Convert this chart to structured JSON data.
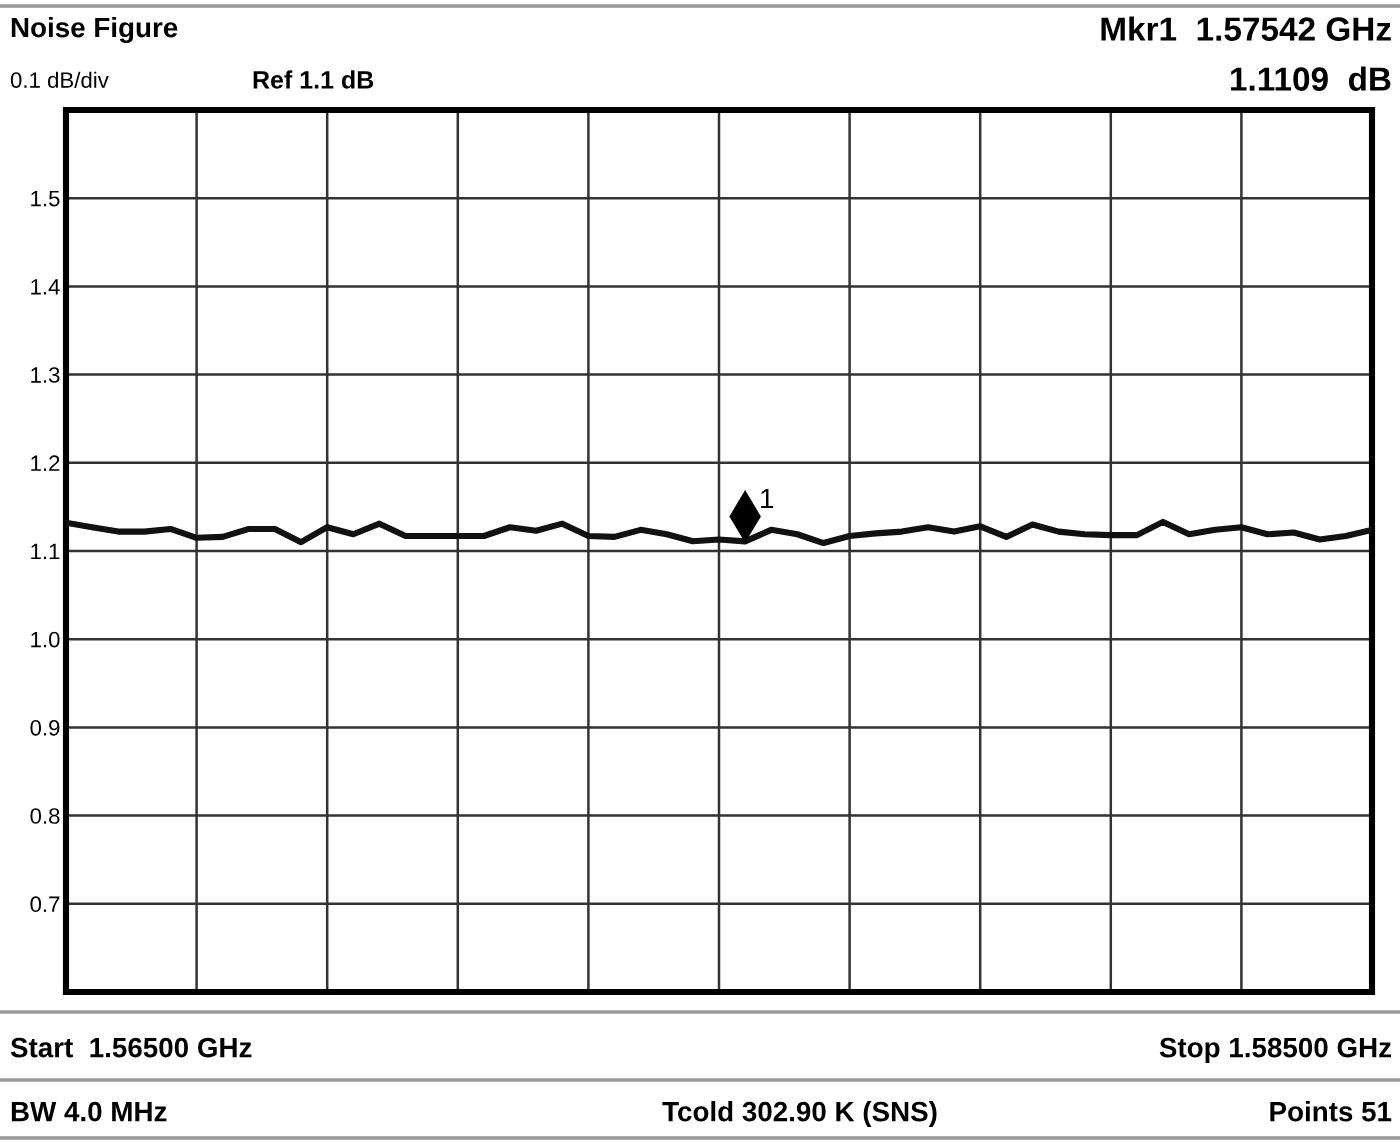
{
  "chart_data": {
    "type": "line",
    "title": "Noise Figure",
    "categories": [
      null,
      null,
      null,
      null,
      null,
      null,
      null,
      null,
      null,
      null,
      null,
      null,
      null,
      null,
      null,
      null,
      null,
      null,
      null,
      null,
      null,
      null,
      null,
      null,
      null,
      null,
      null,
      null,
      null,
      null,
      null,
      null,
      null,
      null,
      null,
      null,
      null,
      null,
      null,
      null,
      null,
      null,
      null,
      null,
      null,
      null,
      null,
      null,
      null,
      null,
      null
    ],
    "series": [
      {
        "color": "#111111",
        "values": [
          1.132,
          1.127,
          1.122,
          1.122,
          1.125,
          1.115,
          1.116,
          1.125,
          1.125,
          1.11,
          1.127,
          1.119,
          1.131,
          1.117,
          1.117,
          1.117,
          1.117,
          1.127,
          1.123,
          1.131,
          1.117,
          1.116,
          1.124,
          1.119,
          1.111,
          1.113,
          1.1109,
          1.124,
          1.119,
          1.109,
          1.117,
          1.12,
          1.122,
          1.127,
          1.122,
          1.128,
          1.116,
          1.13,
          1.122,
          1.119,
          1.118,
          1.118,
          1.133,
          1.119,
          1.124,
          1.127,
          1.119,
          1.121,
          1.113,
          1.117,
          1.124
        ]
      }
    ],
    "ylim": [
      0.6,
      1.6
    ],
    "yticks": [
      0.7,
      0.8,
      0.9,
      {
        "value": 1,
        "label": "1.0"
      },
      1.1,
      1.2,
      1.3,
      1.4,
      1.5
    ],
    "tick_labels": "y",
    "grid": true,
    "line_style": "solid",
    "marker": "none",
    "annotations": [
      "0.1 dB/div",
      "Ref 1.1 dB",
      "Mkr1  1.57542 GHz",
      "1.1109  dB",
      "Start  1.56500 GHz",
      "Stop 1.58500 GHz",
      "BW 4.0 MHz",
      "Tcold 302.90 K (SNS)",
      "Points 51",
      {
        "text": "1",
        "y": 1.1109
      }
    ]
  }
}
